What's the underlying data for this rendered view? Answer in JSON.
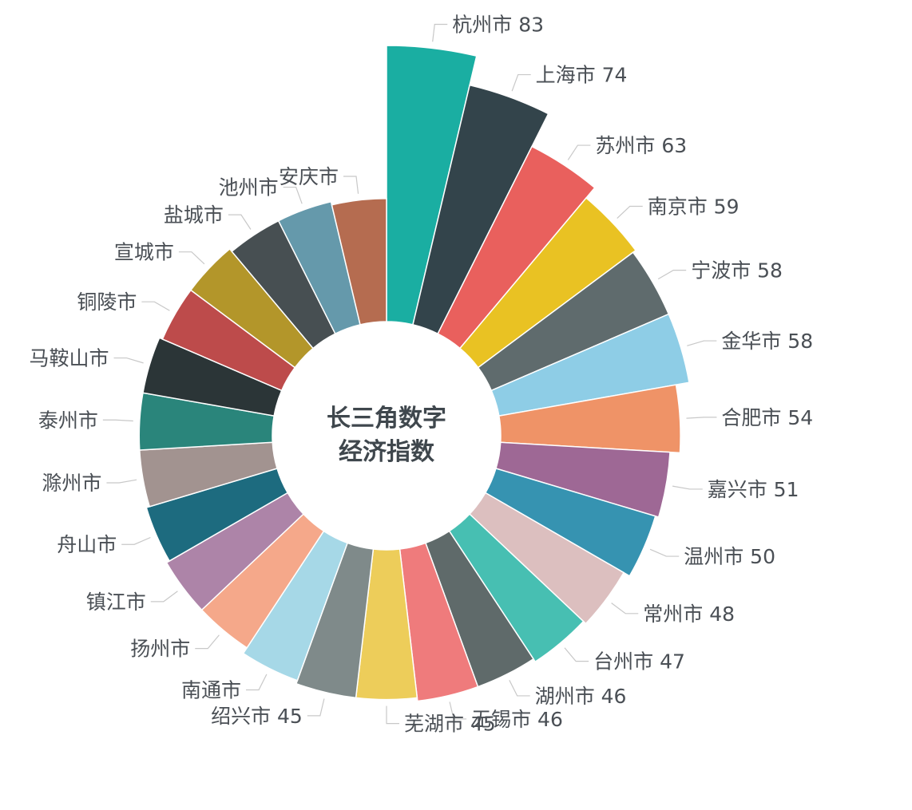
{
  "chart_data": {
    "type": "pie",
    "variant": "rose-radius",
    "title_lines": [
      "长三角数字",
      "经济指数"
    ],
    "slices": [
      {
        "label": "杭州市",
        "value": 83,
        "show_value": true,
        "color": "#1aaea2"
      },
      {
        "label": "上海市",
        "value": 74,
        "show_value": true,
        "color": "#33444b"
      },
      {
        "label": "苏州市",
        "value": 63,
        "show_value": true,
        "color": "#e9605d"
      },
      {
        "label": "南京市",
        "value": 59,
        "show_value": true,
        "color": "#e9c223"
      },
      {
        "label": "宁波市",
        "value": 58,
        "show_value": true,
        "color": "#5f6b6d"
      },
      {
        "label": "金华市",
        "value": 58,
        "show_value": true,
        "color": "#8ecde6"
      },
      {
        "label": "合肥市",
        "value": 54,
        "show_value": true,
        "color": "#ef9367"
      },
      {
        "label": "嘉兴市",
        "value": 51,
        "show_value": true,
        "color": "#9e6895"
      },
      {
        "label": "温州市",
        "value": 50,
        "show_value": true,
        "color": "#3693b1"
      },
      {
        "label": "常州市",
        "value": 48,
        "show_value": true,
        "color": "#dcbfbf"
      },
      {
        "label": "台州市",
        "value": 47,
        "show_value": true,
        "color": "#47bfb2"
      },
      {
        "label": "湖州市",
        "value": 46,
        "show_value": true,
        "color": "#5f6a6a"
      },
      {
        "label": "无锡市",
        "value": 46,
        "show_value": true,
        "color": "#ef7b7c"
      },
      {
        "label": "芜湖市",
        "value": 45,
        "show_value": true,
        "color": "#edcd5a"
      },
      {
        "label": "绍兴市",
        "value": 45,
        "show_value": true,
        "color": "#7f8a8a"
      },
      {
        "label": "南通市",
        "value": 44,
        "show_value": false,
        "color": "#a6d8e7"
      },
      {
        "label": "扬州市",
        "value": 42,
        "show_value": false,
        "color": "#f5a88a"
      },
      {
        "label": "镇江市",
        "value": 42,
        "show_value": false,
        "color": "#ad84a8"
      },
      {
        "label": "舟山市",
        "value": 41,
        "show_value": false,
        "color": "#1d6b7f"
      },
      {
        "label": "滁州市",
        "value": 40,
        "show_value": false,
        "color": "#a29390"
      },
      {
        "label": "泰州市",
        "value": 40,
        "show_value": false,
        "color": "#2a857b"
      },
      {
        "label": "马鞍山市",
        "value": 40,
        "show_value": false,
        "color": "#2b3537"
      },
      {
        "label": "铜陵市",
        "value": 39,
        "show_value": false,
        "color": "#bd4b4b"
      },
      {
        "label": "宣城市",
        "value": 39,
        "show_value": false,
        "color": "#b3962a"
      },
      {
        "label": "盐城市",
        "value": 38,
        "show_value": false,
        "color": "#474f52"
      },
      {
        "label": "池州市",
        "value": 38,
        "show_value": false,
        "color": "#6599ab"
      },
      {
        "label": "安庆市",
        "value": 37,
        "show_value": false,
        "color": "#b56c50"
      }
    ]
  }
}
